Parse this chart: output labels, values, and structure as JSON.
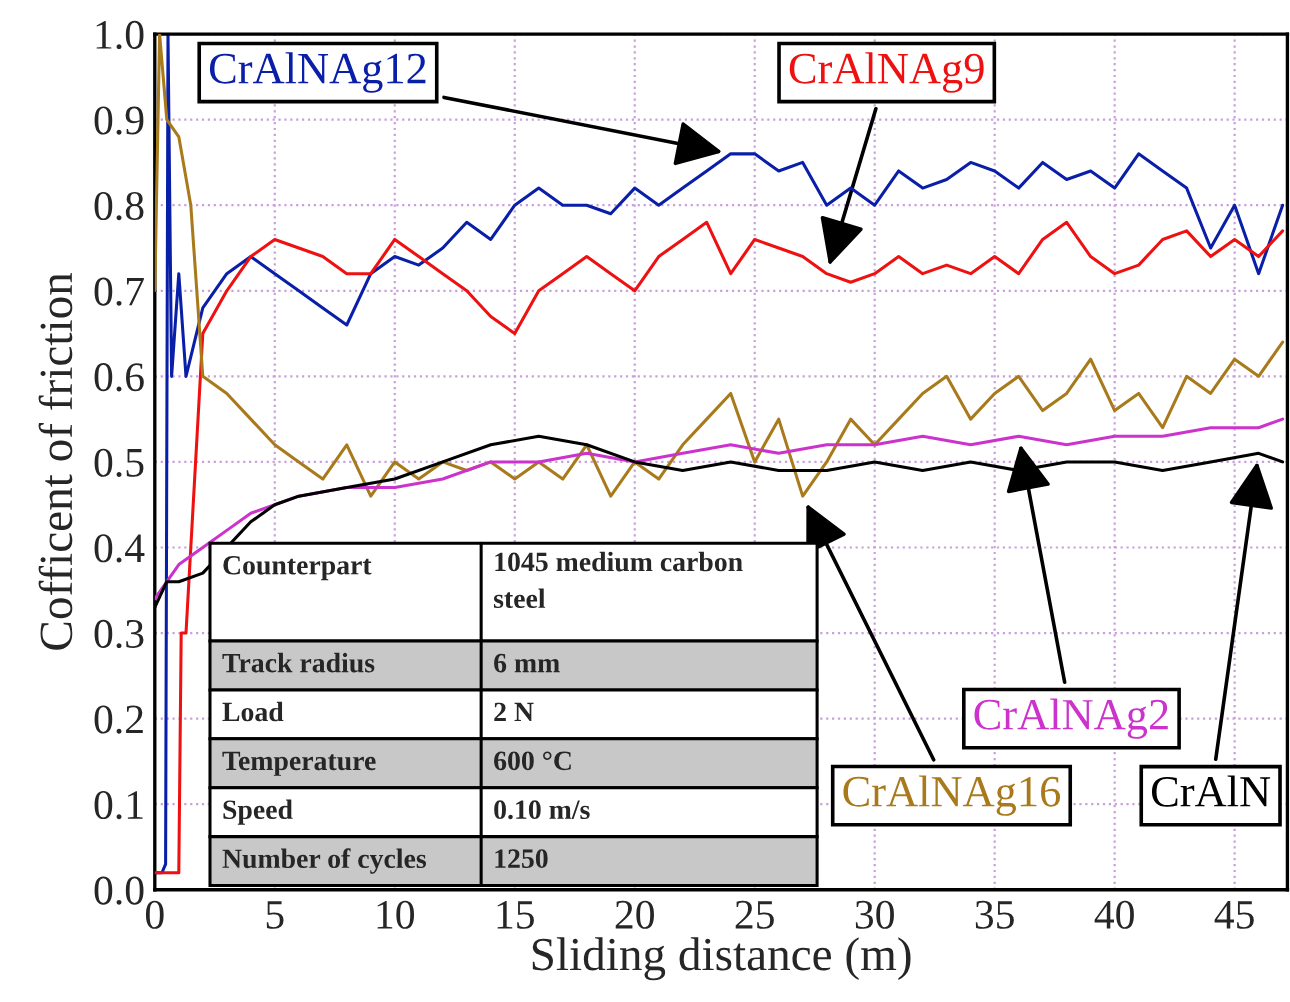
{
  "chart_data": {
    "type": "line",
    "xlabel": "Sliding distance (m)",
    "ylabel": "Cofficent of friction",
    "xlim": [
      0,
      47.2
    ],
    "ylim": [
      0,
      1.0
    ],
    "xticks": [
      0,
      5,
      10,
      15,
      20,
      25,
      30,
      35,
      40,
      45
    ],
    "yticks": [
      {
        "value": 0,
        "label": "0.0"
      },
      0.1,
      0.2,
      0.3,
      0.4,
      0.5,
      0.6,
      0.7,
      0.8,
      0.9,
      {
        "value": 1,
        "label": "1.0"
      }
    ],
    "grid": true,
    "legend": false,
    "series": [
      {
        "color": "#0a1fa8",
        "x": [
          0,
          0.3,
          0.45,
          0.55,
          0.7,
          1,
          1.3,
          2,
          3,
          4,
          5,
          6,
          7,
          8,
          9,
          10,
          11,
          12,
          13,
          14,
          15,
          16,
          17,
          18,
          19,
          20,
          21,
          22,
          23,
          24,
          25,
          26,
          27,
          28,
          29,
          30,
          31,
          32,
          33,
          34,
          35,
          36,
          37,
          38,
          39,
          40,
          41,
          42,
          43,
          44,
          45,
          46,
          47
        ],
        "values": [
          0.02,
          0.02,
          0.03,
          1.0,
          0.6,
          0.72,
          0.6,
          0.68,
          0.72,
          0.74,
          0.72,
          0.7,
          0.68,
          0.66,
          0.72,
          0.74,
          0.73,
          0.75,
          0.78,
          0.76,
          0.8,
          0.82,
          0.8,
          0.8,
          0.79,
          0.82,
          0.8,
          0.82,
          0.84,
          0.86,
          0.86,
          0.84,
          0.85,
          0.8,
          0.82,
          0.8,
          0.84,
          0.82,
          0.83,
          0.85,
          0.84,
          0.82,
          0.85,
          0.83,
          0.84,
          0.82,
          0.86,
          0.84,
          0.82,
          0.75,
          0.8,
          0.72,
          0.8
        ]
      },
      {
        "color": "#ee1111",
        "x": [
          0,
          1.0,
          1.1,
          1.3,
          2,
          3,
          4,
          5,
          6,
          7,
          8,
          9,
          10,
          11,
          12,
          13,
          14,
          15,
          16,
          17,
          18,
          19,
          20,
          21,
          22,
          23,
          24,
          25,
          26,
          27,
          28,
          29,
          30,
          31,
          32,
          33,
          34,
          35,
          36,
          37,
          38,
          39,
          40,
          41,
          42,
          43,
          44,
          45,
          46,
          47
        ],
        "values": [
          0.02,
          0.02,
          0.3,
          0.3,
          0.65,
          0.7,
          0.74,
          0.76,
          0.75,
          0.74,
          0.72,
          0.72,
          0.76,
          0.74,
          0.72,
          0.7,
          0.67,
          0.65,
          0.7,
          0.72,
          0.74,
          0.72,
          0.7,
          0.74,
          0.76,
          0.78,
          0.72,
          0.76,
          0.75,
          0.74,
          0.72,
          0.71,
          0.72,
          0.74,
          0.72,
          0.73,
          0.72,
          0.74,
          0.72,
          0.76,
          0.78,
          0.74,
          0.72,
          0.73,
          0.76,
          0.77,
          0.74,
          0.76,
          0.74,
          0.77
        ]
      },
      {
        "color": "#a87a1c",
        "x": [
          0,
          0.2,
          0.5,
          1,
          1.5,
          2,
          3,
          4,
          5,
          6,
          7,
          8,
          9,
          10,
          11,
          12,
          13,
          14,
          15,
          16,
          17,
          18,
          19,
          20,
          21,
          22,
          23,
          24,
          25,
          26,
          27,
          28,
          29,
          30,
          31,
          32,
          33,
          34,
          35,
          36,
          37,
          38,
          39,
          40,
          41,
          42,
          43,
          44,
          45,
          46,
          47
        ],
        "values": [
          0.7,
          1.0,
          0.9,
          0.88,
          0.8,
          0.6,
          0.58,
          0.55,
          0.52,
          0.5,
          0.48,
          0.52,
          0.46,
          0.5,
          0.48,
          0.5,
          0.49,
          0.5,
          0.48,
          0.5,
          0.48,
          0.52,
          0.46,
          0.5,
          0.48,
          0.52,
          0.55,
          0.58,
          0.5,
          0.55,
          0.46,
          0.5,
          0.55,
          0.52,
          0.55,
          0.58,
          0.6,
          0.55,
          0.58,
          0.6,
          0.56,
          0.58,
          0.62,
          0.56,
          0.58,
          0.54,
          0.6,
          0.58,
          0.62,
          0.6,
          0.64
        ]
      },
      {
        "color": "#cc33cc",
        "x": [
          0,
          1,
          2,
          3,
          4,
          5,
          6,
          8,
          10,
          12,
          14,
          16,
          18,
          20,
          22,
          24,
          26,
          28,
          30,
          32,
          34,
          36,
          38,
          40,
          42,
          44,
          46,
          47
        ],
        "values": [
          0.34,
          0.38,
          0.4,
          0.42,
          0.44,
          0.45,
          0.46,
          0.47,
          0.47,
          0.48,
          0.5,
          0.5,
          0.51,
          0.5,
          0.51,
          0.52,
          0.51,
          0.52,
          0.52,
          0.53,
          0.52,
          0.53,
          0.52,
          0.53,
          0.53,
          0.54,
          0.54,
          0.55
        ]
      },
      {
        "color": "#000000",
        "x": [
          0,
          0.5,
          1,
          2,
          3,
          4,
          5,
          6,
          8,
          10,
          12,
          14,
          16,
          18,
          20,
          22,
          24,
          26,
          28,
          30,
          32,
          34,
          36,
          38,
          40,
          42,
          44,
          46,
          47
        ],
        "values": [
          0.33,
          0.36,
          0.36,
          0.37,
          null,
          0.43,
          0.45,
          0.46,
          0.47,
          0.48,
          0.5,
          0.52,
          0.53,
          0.52,
          0.5,
          0.49,
          0.5,
          0.49,
          0.49,
          0.5,
          0.49,
          0.5,
          0.49,
          0.5,
          0.5,
          0.49,
          0.5,
          0.51,
          0.5
        ]
      }
    ],
    "annotations": [
      {
        "text": "CrAlNAg12",
        "x": 24,
        "y": 0.86
      },
      {
        "text": "CrAlNAg9",
        "x": 28,
        "y": 0.72
      },
      {
        "text": "CrAlNAg16",
        "x": 27,
        "y": 0.46
      },
      {
        "text": "CrAlNAg2",
        "x": 36,
        "y": 0.53
      },
      {
        "text": "CrAlN",
        "x": 46,
        "y": 0.51
      },
      "Counterpart",
      "1045 medium carbon\nsteel",
      "Track radius",
      "6 mm",
      "Load",
      "2 N",
      "Temperature",
      "600 °C",
      "Speed",
      "0.10 m/s",
      "Number of cycles",
      "1250"
    ]
  }
}
